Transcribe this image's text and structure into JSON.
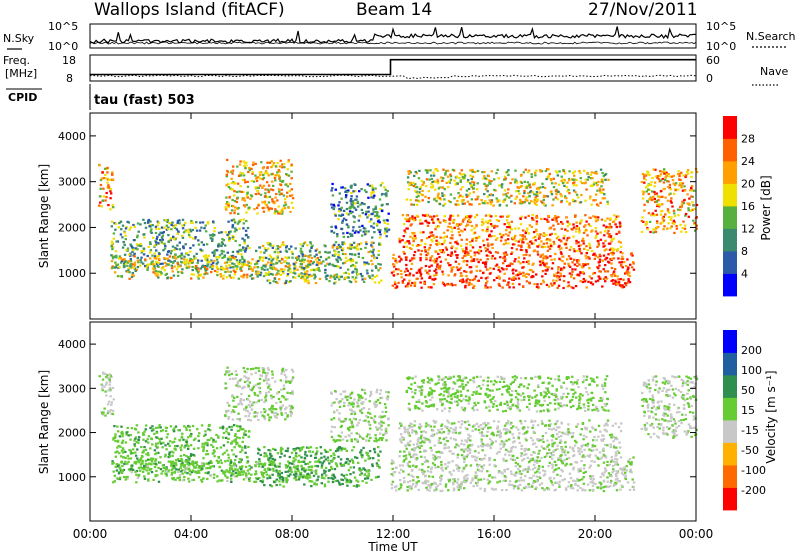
{
  "header": {
    "station": "Wallops Island (fitACF)",
    "beam": "Beam 14",
    "date": "27/Nov/2011"
  },
  "top_panel": {
    "left_label": "N.Sky",
    "right_label": "N.Search",
    "left_ticks": [
      "10^5",
      "10^0"
    ],
    "right_ticks": [
      "10^5",
      "10^0"
    ]
  },
  "freq_panel": {
    "left_label_1": "Freq.",
    "left_label_2": "[MHz]",
    "right_label": "Nave",
    "left_ticks": [
      "18",
      "8"
    ],
    "right_ticks": [
      "60",
      "0"
    ]
  },
  "cpid": {
    "label": "CPID",
    "value": "tau (fast) 503"
  },
  "panels": {
    "power": {
      "ylabel": "Slant Range [km]",
      "cbar_label": "Power [dB]",
      "cbar_ticks": [
        "28",
        "24",
        "20",
        "16",
        "12",
        "8",
        "4"
      ]
    },
    "velocity": {
      "ylabel": "Slant Range [km]",
      "cbar_label": "Velocity [m s⁻¹]",
      "cbar_ticks": [
        "200",
        "100",
        "50",
        "15",
        "-15",
        "-50",
        "-100",
        "-200"
      ]
    },
    "y_ticks": [
      "1000",
      "2000",
      "3000",
      "4000"
    ]
  },
  "xaxis": {
    "label": "Time UT",
    "ticks": [
      "00:00",
      "04:00",
      "08:00",
      "12:00",
      "16:00",
      "20:00",
      "00:00"
    ]
  },
  "colors": {
    "power_scale": [
      "#0000ff",
      "#2a5aa8",
      "#3a8a70",
      "#55b040",
      "#f0e000",
      "#ffa000",
      "#ff6000",
      "#ff0000"
    ],
    "velocity_scale": [
      "#ff0000",
      "#ff6a00",
      "#ffb000",
      "#c8c8c8",
      "#66cc33",
      "#2f8f4f",
      "#1f5fa0",
      "#0000ff"
    ]
  },
  "chart_data": {
    "type": "heatmap",
    "x_unit": "hours UT",
    "x_range": [
      0,
      24
    ],
    "y_unit": "km",
    "y_range": [
      0,
      4500
    ],
    "power_range_db": [
      0,
      32
    ],
    "velocity_range_ms": [
      -240,
      240
    ],
    "echo_regions": [
      {
        "t0": 0.3,
        "t1": 0.9,
        "r0": 2400,
        "r1": 3400,
        "power": 22,
        "velocity": -10
      },
      {
        "t0": 0.8,
        "t1": 6.3,
        "r0": 1100,
        "r1": 2200,
        "power": 12,
        "velocity": 40
      },
      {
        "t0": 0.8,
        "t1": 9.0,
        "r0": 900,
        "r1": 1400,
        "power": 18,
        "velocity": 30
      },
      {
        "t0": 5.3,
        "t1": 8.0,
        "r0": 2300,
        "r1": 3500,
        "power": 20,
        "velocity": -5
      },
      {
        "t0": 6.5,
        "t1": 11.5,
        "r0": 800,
        "r1": 1700,
        "power": 14,
        "velocity": 60
      },
      {
        "t0": 9.5,
        "t1": 11.8,
        "r0": 1800,
        "r1": 3000,
        "power": 10,
        "velocity": 10
      },
      {
        "t0": 11.9,
        "t1": 21.5,
        "r0": 700,
        "r1": 1500,
        "power": 28,
        "velocity": -10
      },
      {
        "t0": 12.2,
        "t1": 21.0,
        "r0": 1500,
        "r1": 2300,
        "power": 24,
        "velocity": -12
      },
      {
        "t0": 12.5,
        "t1": 20.5,
        "r0": 2500,
        "r1": 3300,
        "power": 18,
        "velocity": 20
      },
      {
        "t0": 21.8,
        "t1": 24.0,
        "r0": 1900,
        "r1": 3300,
        "power": 22,
        "velocity": -8
      }
    ],
    "frequency_mhz": [
      {
        "t": 0,
        "v": 10.5
      },
      {
        "t": 11.9,
        "v": 10.5
      },
      {
        "t": 11.9,
        "v": 16.2
      },
      {
        "t": 24,
        "v": 16.2
      }
    ],
    "nsky_approx_log10": 0.3,
    "nsearch_approx_log10": 0.9
  }
}
